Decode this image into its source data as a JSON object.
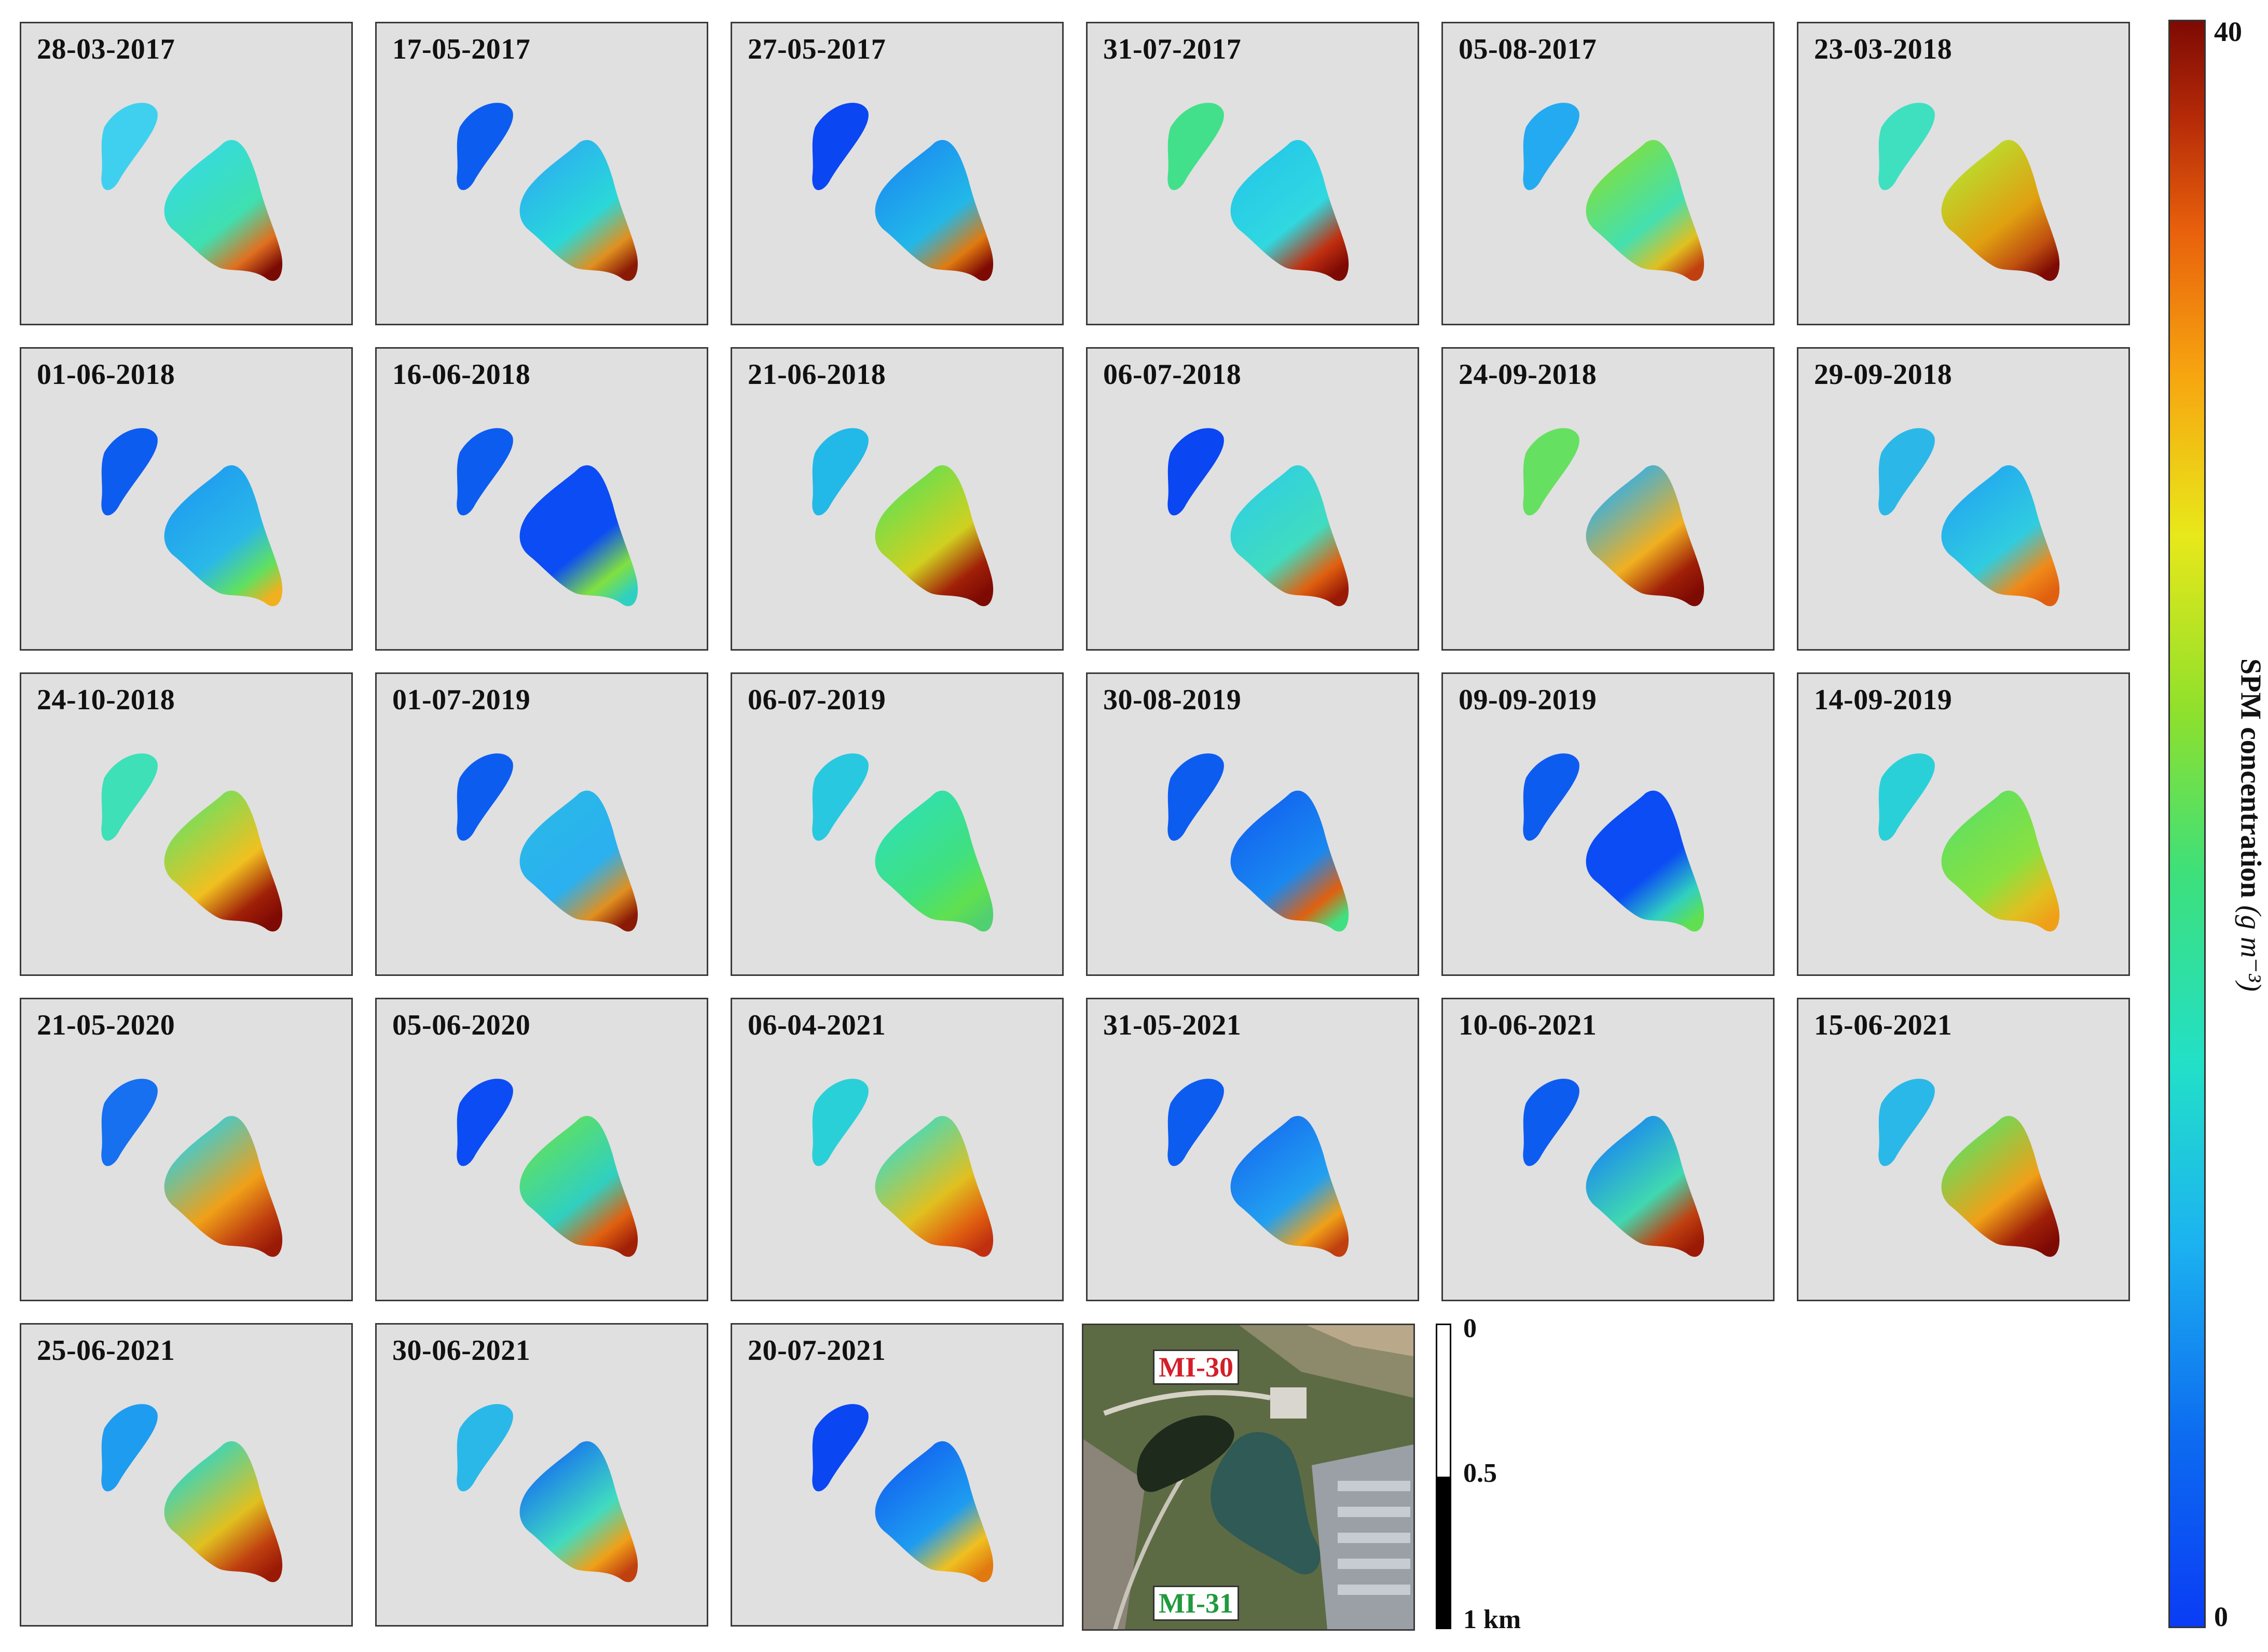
{
  "panels": [
    {
      "date": "28-03-2017"
    },
    {
      "date": "17-05-2017"
    },
    {
      "date": "27-05-2017"
    },
    {
      "date": "31-07-2017"
    },
    {
      "date": "05-08-2017"
    },
    {
      "date": "23-03-2018"
    },
    {
      "date": "01-06-2018"
    },
    {
      "date": "16-06-2018"
    },
    {
      "date": "21-06-2018"
    },
    {
      "date": "06-07-2018"
    },
    {
      "date": "24-09-2018"
    },
    {
      "date": "29-09-2018"
    },
    {
      "date": "24-10-2018"
    },
    {
      "date": "01-07-2019"
    },
    {
      "date": "06-07-2019"
    },
    {
      "date": "30-08-2019"
    },
    {
      "date": "09-09-2019"
    },
    {
      "date": "14-09-2019"
    },
    {
      "date": "21-05-2020"
    },
    {
      "date": "05-06-2020"
    },
    {
      "date": "06-04-2021"
    },
    {
      "date": "31-05-2021"
    },
    {
      "date": "10-06-2021"
    },
    {
      "date": "15-06-2021"
    },
    {
      "date": "25-06-2021"
    },
    {
      "date": "30-06-2021"
    },
    {
      "date": "20-07-2021"
    }
  ],
  "map": {
    "label_top": "MI-30",
    "label_top_color": "#d21f2a",
    "label_bottom": "MI-31",
    "label_bottom_color": "#1f9a3c"
  },
  "scalebar": {
    "tick_top": "0",
    "tick_mid": "0.5",
    "tick_bottom": "1 km"
  },
  "colorbar": {
    "max_label": "40",
    "min_label": "0",
    "title": "SPM concentration",
    "unit": "(g m⁻³)"
  }
}
